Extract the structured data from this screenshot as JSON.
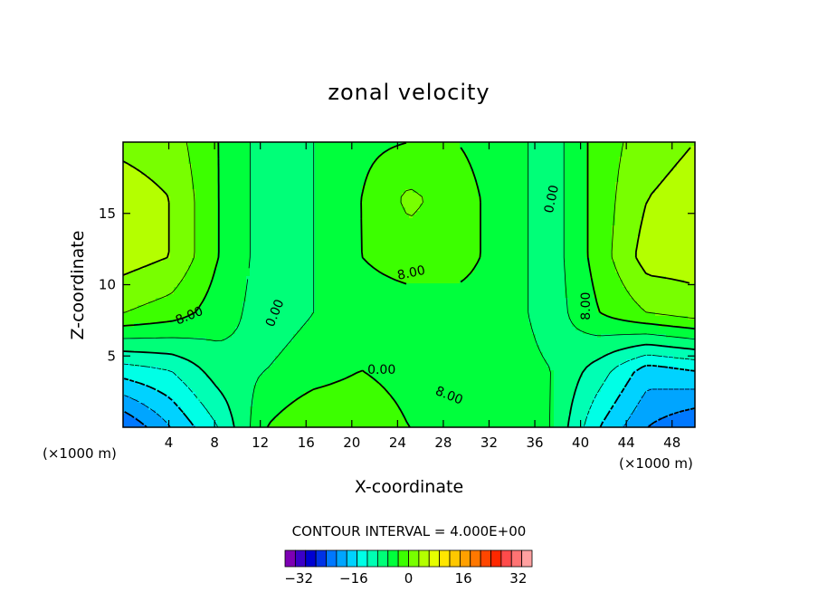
{
  "chart_data": {
    "type": "contour",
    "title": "zonal velocity",
    "xlabel": "X-coordinate",
    "ylabel": "Z-coordinate",
    "x_unit_left": "(×1000 m)",
    "x_unit_right": "(×1000 m)",
    "xlim": [
      0,
      50
    ],
    "ylim": [
      0,
      20
    ],
    "x_ticks": [
      4,
      8,
      12,
      16,
      20,
      24,
      28,
      32,
      36,
      40,
      44,
      48
    ],
    "y_ticks": [
      5,
      10,
      15
    ],
    "contour_interval_text": "CONTOUR INTERVAL = 4.000E+00",
    "contour_interval": 4.0,
    "contour_labels": [
      {
        "text": "8.00",
        "x": 5.8,
        "z": 7.8,
        "angle": -22
      },
      {
        "text": "0.00",
        "x": 13.3,
        "z": 8.0,
        "angle": -68
      },
      {
        "text": "8.00",
        "x": 25.2,
        "z": 10.8,
        "angle": -12
      },
      {
        "text": "0.00",
        "x": 37.5,
        "z": 16.0,
        "angle": -78
      },
      {
        "text": "8.00",
        "x": 40.5,
        "z": 8.5,
        "angle": -90
      },
      {
        "text": "0.00",
        "x": 22.6,
        "z": 4.0,
        "angle": 0
      },
      {
        "text": "8.00",
        "x": 28.5,
        "z": 2.2,
        "angle": 22
      }
    ],
    "colorbar": {
      "ticks": [
        -32,
        -16,
        0,
        16,
        32
      ],
      "vmin": -36,
      "vmax": 36,
      "colors": [
        "#7d00b4",
        "#3c00c8",
        "#0000d2",
        "#0032e6",
        "#0078ff",
        "#00a5ff",
        "#00d2ff",
        "#00ffe6",
        "#00ffb4",
        "#00ff78",
        "#00ff3c",
        "#3cff00",
        "#78ff00",
        "#b4ff00",
        "#e6ff00",
        "#ffe600",
        "#ffc800",
        "#ffa000",
        "#ff7800",
        "#ff4600",
        "#ff2800",
        "#ff4b4b",
        "#ff7373",
        "#ffa0a0"
      ]
    },
    "field": {
      "nx": 13,
      "nz": 6,
      "z_levels": [
        0,
        4,
        8,
        12,
        16,
        20
      ],
      "values": [
        [
          -20,
          -12,
          -4,
          8,
          12,
          12,
          8,
          6,
          6,
          4,
          -8,
          -16,
          -20
        ],
        [
          -6,
          -4,
          2,
          4,
          6,
          8,
          6,
          4,
          6,
          4,
          -2,
          -10,
          -8
        ],
        [
          12,
          10,
          6,
          2,
          4,
          6,
          6,
          6,
          6,
          2,
          8,
          12,
          14
        ],
        [
          18,
          16,
          8,
          2,
          4,
          8,
          10,
          10,
          6,
          2,
          10,
          18,
          18
        ],
        [
          18,
          16,
          8,
          2,
          4,
          8,
          13,
          10,
          6,
          2,
          10,
          16,
          18
        ],
        [
          15,
          14,
          8,
          2,
          4,
          7,
          8,
          8,
          6,
          2,
          10,
          14,
          16
        ]
      ]
    }
  }
}
